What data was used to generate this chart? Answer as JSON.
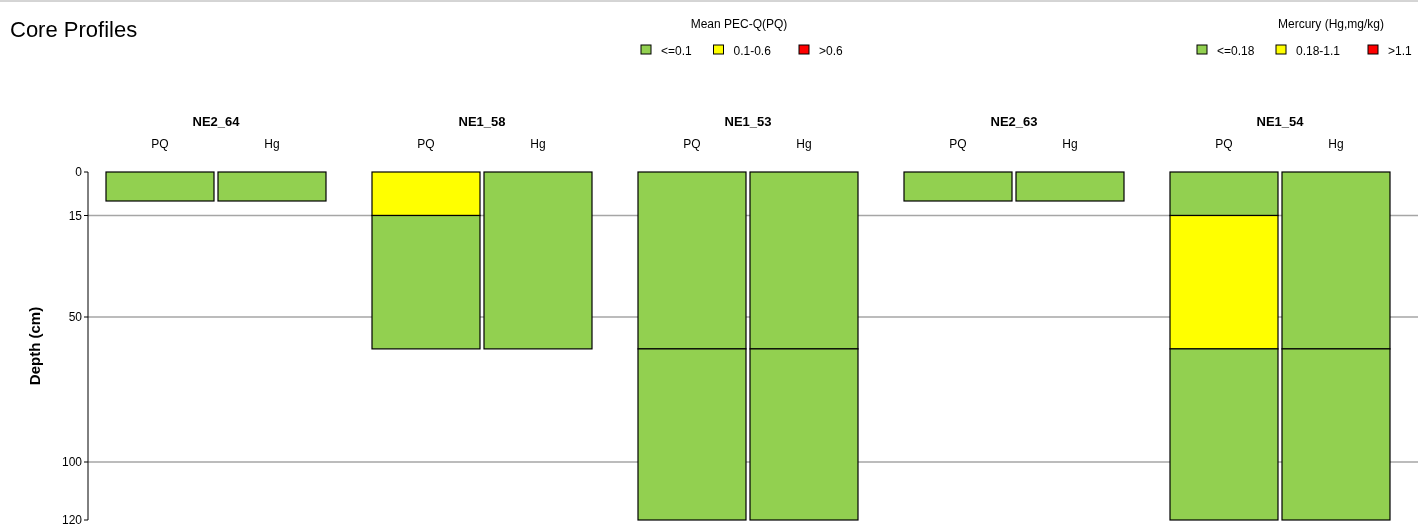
{
  "chart_data": {
    "type": "bar",
    "title": "Core Profiles",
    "ylabel": "Depth (cm)",
    "stacked": true,
    "categories": [
      "PQ",
      "Hg",
      "PQ",
      "Hg",
      "PQ",
      "Hg",
      "PQ",
      "Hg",
      "PQ",
      "Hg"
    ],
    "ylim": [
      120,
      0
    ],
    "yticks": [
      0,
      15,
      50,
      100,
      120
    ],
    "grid": "y",
    "legend": "top right",
    "annotations": [
      "Mean PEC-Q(PQ)",
      "Mercury (Hg,mg/kg)",
      "NE2_64",
      "NE1_58",
      "NE1_53",
      "NE2_63",
      "NE1_54"
    ],
    "series": [
      {
        "values": [
          10,
          10,
          15,
          61,
          61,
          61,
          10,
          10,
          15,
          61
        ],
        "colors": [
          "#92d050",
          "#92d050",
          "#ffff00",
          "#92d050",
          "#92d050",
          "#92d050",
          "#92d050",
          "#92d050",
          "#92d050",
          "#92d050"
        ]
      },
      {
        "values": [
          null,
          null,
          46,
          null,
          59,
          59,
          null,
          null,
          46,
          59
        ],
        "colors": [
          null,
          null,
          "#92d050",
          null,
          "#92d050",
          "#92d050",
          null,
          null,
          "#ffff00",
          "#92d050"
        ]
      },
      {
        "values": [
          null,
          null,
          null,
          null,
          null,
          null,
          null,
          null,
          59,
          null
        ],
        "colors": [
          null,
          null,
          null,
          null,
          null,
          null,
          null,
          null,
          "#92d050",
          null
        ]
      },
      {
        "name": "<=0.1",
        "color": "#92d050",
        "values": [
          null,
          null,
          null,
          null,
          null,
          null,
          null,
          null,
          null,
          null
        ]
      },
      {
        "name": "0.1-0.6",
        "color": "#ffff00",
        "values": [
          null,
          null,
          null,
          null,
          null,
          null,
          null,
          null,
          null,
          null
        ]
      },
      {
        "name": ">0.6",
        "color": "#ff0000",
        "values": [
          null,
          null,
          null,
          null,
          null,
          null,
          null,
          null,
          null,
          null
        ]
      },
      {
        "name": "<=0.18",
        "color": "#92d050",
        "values": [
          null,
          null,
          null,
          null,
          null,
          null,
          null,
          null,
          null,
          null
        ]
      },
      {
        "name": "0.18-1.1",
        "color": "#ffff00",
        "values": [
          null,
          null,
          null,
          null,
          null,
          null,
          null,
          null,
          null,
          null
        ]
      },
      {
        "name": ">1.1",
        "color": "#ff0000",
        "values": [
          null,
          null,
          null,
          null,
          null,
          null,
          null,
          null,
          null,
          null
        ]
      }
    ]
  }
}
